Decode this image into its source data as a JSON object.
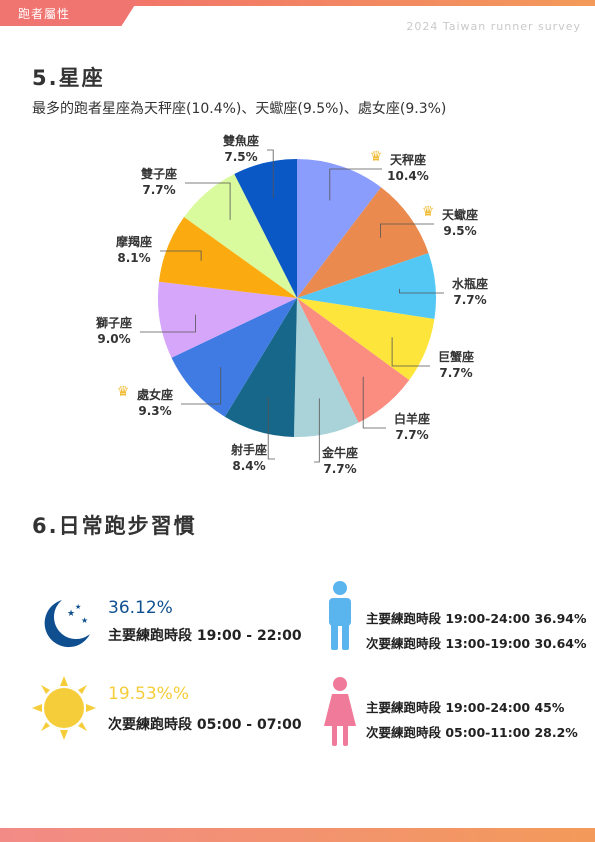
{
  "header": {
    "tab_label": "跑者屬性",
    "survey_label": "2024 Taiwan runner survey"
  },
  "section5": {
    "title": "5.星座",
    "subtitle": "最多的跑者星座為天秤座(10.4%)、天蠍座(9.5%)、處女座(9.3%)"
  },
  "chart_data": {
    "type": "pie",
    "title": "",
    "slices": [
      {
        "label": "天秤座",
        "value": 10.4,
        "display": "10.4%",
        "color": "#8b9dfc",
        "crown": true
      },
      {
        "label": "天蠍座",
        "value": 9.5,
        "display": "9.5%",
        "color": "#ea8a4e",
        "crown": true
      },
      {
        "label": "水瓶座",
        "value": 7.7,
        "display": "7.7%",
        "color": "#54c8f5",
        "crown": false
      },
      {
        "label": "巨蟹座",
        "value": 7.7,
        "display": "7.7%",
        "color": "#fde53b",
        "crown": false
      },
      {
        "label": "白羊座",
        "value": 7.7,
        "display": "7.7%",
        "color": "#fa8c80",
        "crown": false
      },
      {
        "label": "金牛座",
        "value": 7.7,
        "display": "7.7%",
        "color": "#a9d3d9",
        "crown": false
      },
      {
        "label": "射手座",
        "value": 8.4,
        "display": "8.4%",
        "color": "#17678a",
        "crown": false
      },
      {
        "label": "處女座",
        "value": 9.3,
        "display": "9.3%",
        "color": "#3f7be3",
        "crown": true
      },
      {
        "label": "獅子座",
        "value": 9.0,
        "display": "9.0%",
        "color": "#d6a6fb",
        "crown": false
      },
      {
        "label": "摩羯座",
        "value": 8.1,
        "display": "8.1%",
        "color": "#fbab0f",
        "crown": false
      },
      {
        "label": "雙子座",
        "value": 7.7,
        "display": "7.7%",
        "color": "#d9fb9e",
        "crown": false
      },
      {
        "label": "雙魚座",
        "value": 7.5,
        "display": "7.5%",
        "color": "#0a57c6",
        "crown": false
      }
    ]
  },
  "section6": {
    "title": "6.日常跑步習慣",
    "night": {
      "percent": "36.12%",
      "percent_color": "#0f4f90",
      "label": "主要練跑時段  19:00 - 22:00",
      "icon": "moon-icon"
    },
    "day": {
      "percent": "19.53%%",
      "percent_color": "#f5cd3a",
      "label": "次要練跑時段 05:00 - 07:00",
      "icon": "sun-icon"
    },
    "male": {
      "icon": "male-runner-icon",
      "color": "#5ab4ee",
      "line1": "主要練跑時段  19:00-24:00 36.94%",
      "line2": "次要練跑時段 13:00-19:00  30.64%"
    },
    "female": {
      "icon": "female-runner-icon",
      "color": "#f07a9a",
      "line1": "主要練跑時段 19:00-24:00   45%",
      "line2": "次要練跑時段   05:00-11:00 28.2%"
    }
  }
}
